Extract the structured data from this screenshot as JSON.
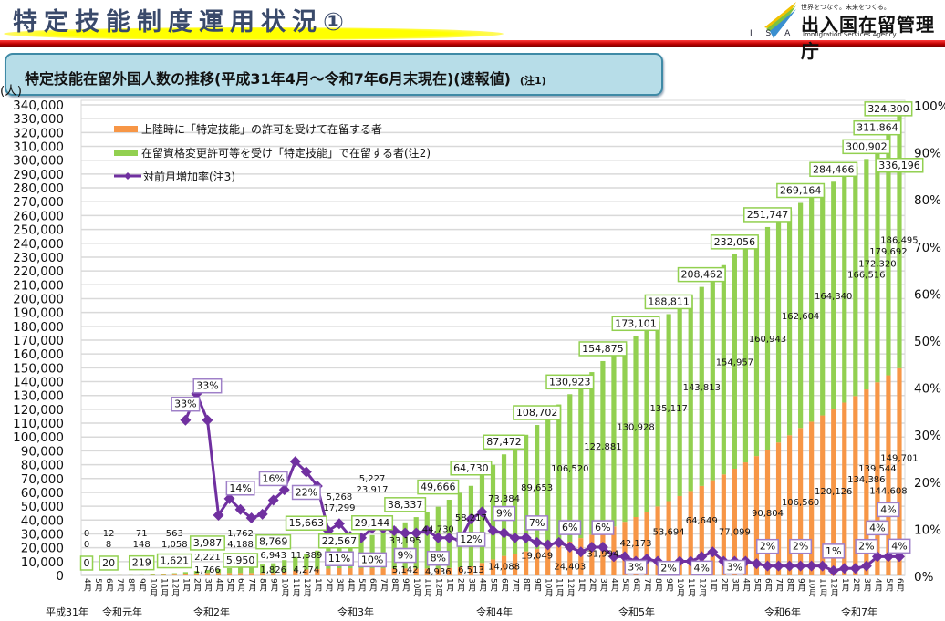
{
  "header": {
    "title": "特定技能制度運用状況①",
    "logo_slogan": "世界をつなぐ。未来をつくる。",
    "logo_name": "出入国在留管理庁",
    "logo_en": "Immigration Services Agency",
    "logo_abbr": "I S A"
  },
  "subtitle": {
    "text": "特定技能在留外国人数の推移(平成31年4月～令和7年6月末現在)(速報値)",
    "note": "(注1)"
  },
  "colors": {
    "landing": "#f79646",
    "status_change": "#92d050",
    "rate": "#7030a0",
    "stripe": "#c00000",
    "subtitle_bg": "#b7dde8"
  },
  "chart_data": {
    "type": "bar",
    "stacked": true,
    "ylabel": "(人)",
    "ylim": [
      0,
      340000
    ],
    "ytick_step": 10000,
    "y2lim": [
      0,
      100
    ],
    "y2tick_step": 10,
    "y2_unit": "%",
    "grid": true,
    "legend_placement": "top-left",
    "categories": [
      "4月",
      "5月",
      "6月",
      "7月",
      "8月",
      "9月",
      "10月",
      "11月",
      "12月",
      "1月",
      "2月",
      "3月",
      "4月",
      "5月",
      "6月",
      "7月",
      "8月",
      "9月",
      "10月",
      "11月",
      "12月",
      "1月",
      "2月",
      "3月",
      "4月",
      "5月",
      "6月",
      "7月",
      "8月",
      "9月",
      "10月",
      "11月",
      "12月",
      "1月",
      "2月",
      "3月",
      "4月",
      "5月",
      "6月",
      "7月",
      "8月",
      "9月",
      "10月",
      "11月",
      "12月",
      "1月",
      "2月",
      "3月",
      "4月",
      "5月",
      "6月",
      "7月",
      "8月",
      "9月",
      "10月",
      "11月",
      "12月",
      "1月",
      "2月",
      "3月",
      "4月",
      "5月",
      "6月",
      "7月",
      "8月",
      "9月",
      "10月",
      "11月",
      "12月",
      "1月",
      "2月",
      "3月",
      "4月",
      "5月",
      "6月"
    ],
    "year_labels": [
      "平成31年",
      "令和元年",
      "令和2年",
      "令和3年",
      "令和4年",
      "令和5年",
      "令和6年",
      "令和7年"
    ],
    "series": [
      {
        "name": "上陸時に「特定技能」の許可を受けて在留する者",
        "kind": "bar",
        "values": [
          0,
          6,
          12,
          32,
          51,
          71,
          235,
          399,
          563,
          964,
          1365,
          1766,
          1765,
          1763,
          1762,
          1783,
          1805,
          1826,
          2642,
          3458,
          4274,
          4605,
          4937,
          5268,
          5254,
          5241,
          5227,
          5199,
          5170,
          5142,
          5073,
          5005,
          4936,
          5462,
          5987,
          6513,
          9038,
          11563,
          14088,
          15742,
          17395,
          19049,
          20834,
          22618,
          24403,
          26933,
          29464,
          31994,
          35387,
          38780,
          42173,
          46013,
          49854,
          53694,
          57346,
          60997,
          64649,
          68799,
          72949,
          77099,
          81667,
          86236,
          90804,
          96056,
          101308,
          106560,
          111082,
          115604,
          120126,
          124879,
          129633,
          134386,
          139544,
          144608,
          149701
        ]
      },
      {
        "name": "在留資格変更許可等を受け「特定技能」で在留する者(注2)",
        "kind": "bar",
        "values": [
          0,
          4,
          8,
          55,
          101,
          148,
          451,
          755,
          1058,
          1446,
          1833,
          2221,
          2877,
          3532,
          4188,
          5106,
          6025,
          6943,
          8425,
          9907,
          11389,
          13359,
          15329,
          17299,
          19505,
          21711,
          23917,
          27010,
          30102,
          33195,
          37040,
          40885,
          44730,
          49226,
          53721,
          58217,
          63273,
          68328,
          73384,
          78807,
          84230,
          89653,
          95276,
          100898,
          106520,
          111974,
          117427,
          122881,
          125563,
          128246,
          130928,
          132324,
          133721,
          135117,
          138016,
          140914,
          143813,
          147528,
          151242,
          154957,
          156952,
          158948,
          160943,
          161497,
          162050,
          162604,
          163183,
          163761,
          164340,
          165065,
          165791,
          166516,
          172320,
          179692,
          186495
        ]
      },
      {
        "name": "対前月増加率(注3)",
        "kind": "line",
        "axis": "right",
        "values": [
          null,
          null,
          null,
          null,
          null,
          null,
          null,
          null,
          null,
          33,
          38.6,
          33,
          12.8,
          16.3,
          14,
          12.2,
          13,
          16,
          18.2,
          24.2,
          22,
          19,
          9.5,
          11,
          8.3,
          8,
          10,
          10,
          9.5,
          9,
          9,
          9.5,
          8,
          8,
          7.5,
          12,
          13.5,
          9.5,
          9,
          8,
          8,
          7,
          6.5,
          7,
          6,
          5,
          6,
          6,
          4,
          4,
          3,
          3.5,
          3,
          2,
          3,
          3,
          4,
          5,
          3,
          3,
          3,
          2.5,
          2,
          2,
          2,
          2,
          2,
          2,
          1,
          1.5,
          1.5,
          2,
          4,
          4,
          4
        ]
      }
    ],
    "totals": [
      0,
      10,
      20,
      87,
      152,
      219,
      686,
      1154,
      1621,
      2410,
      3198,
      3987,
      4642,
      5295,
      5950,
      6889,
      7830,
      8769,
      11067,
      13365,
      15663,
      17964,
      20266,
      22567,
      24759,
      26952,
      29144,
      32209,
      35272,
      38337,
      42113,
      45890,
      49666,
      54688,
      59708,
      64730,
      72311,
      79891,
      87472,
      94549,
      101625,
      108702,
      116110,
      123516,
      130923,
      138907,
      146891,
      154875,
      160950,
      167026,
      173101,
      178337,
      183575,
      188811,
      195362,
      201911,
      208462,
      216327,
      224191,
      232056,
      238619,
      245184,
      251747,
      257553,
      263358,
      269164,
      274265,
      279365,
      284466,
      289944,
      295424,
      300902,
      311864,
      324300,
      336196
    ]
  }
}
